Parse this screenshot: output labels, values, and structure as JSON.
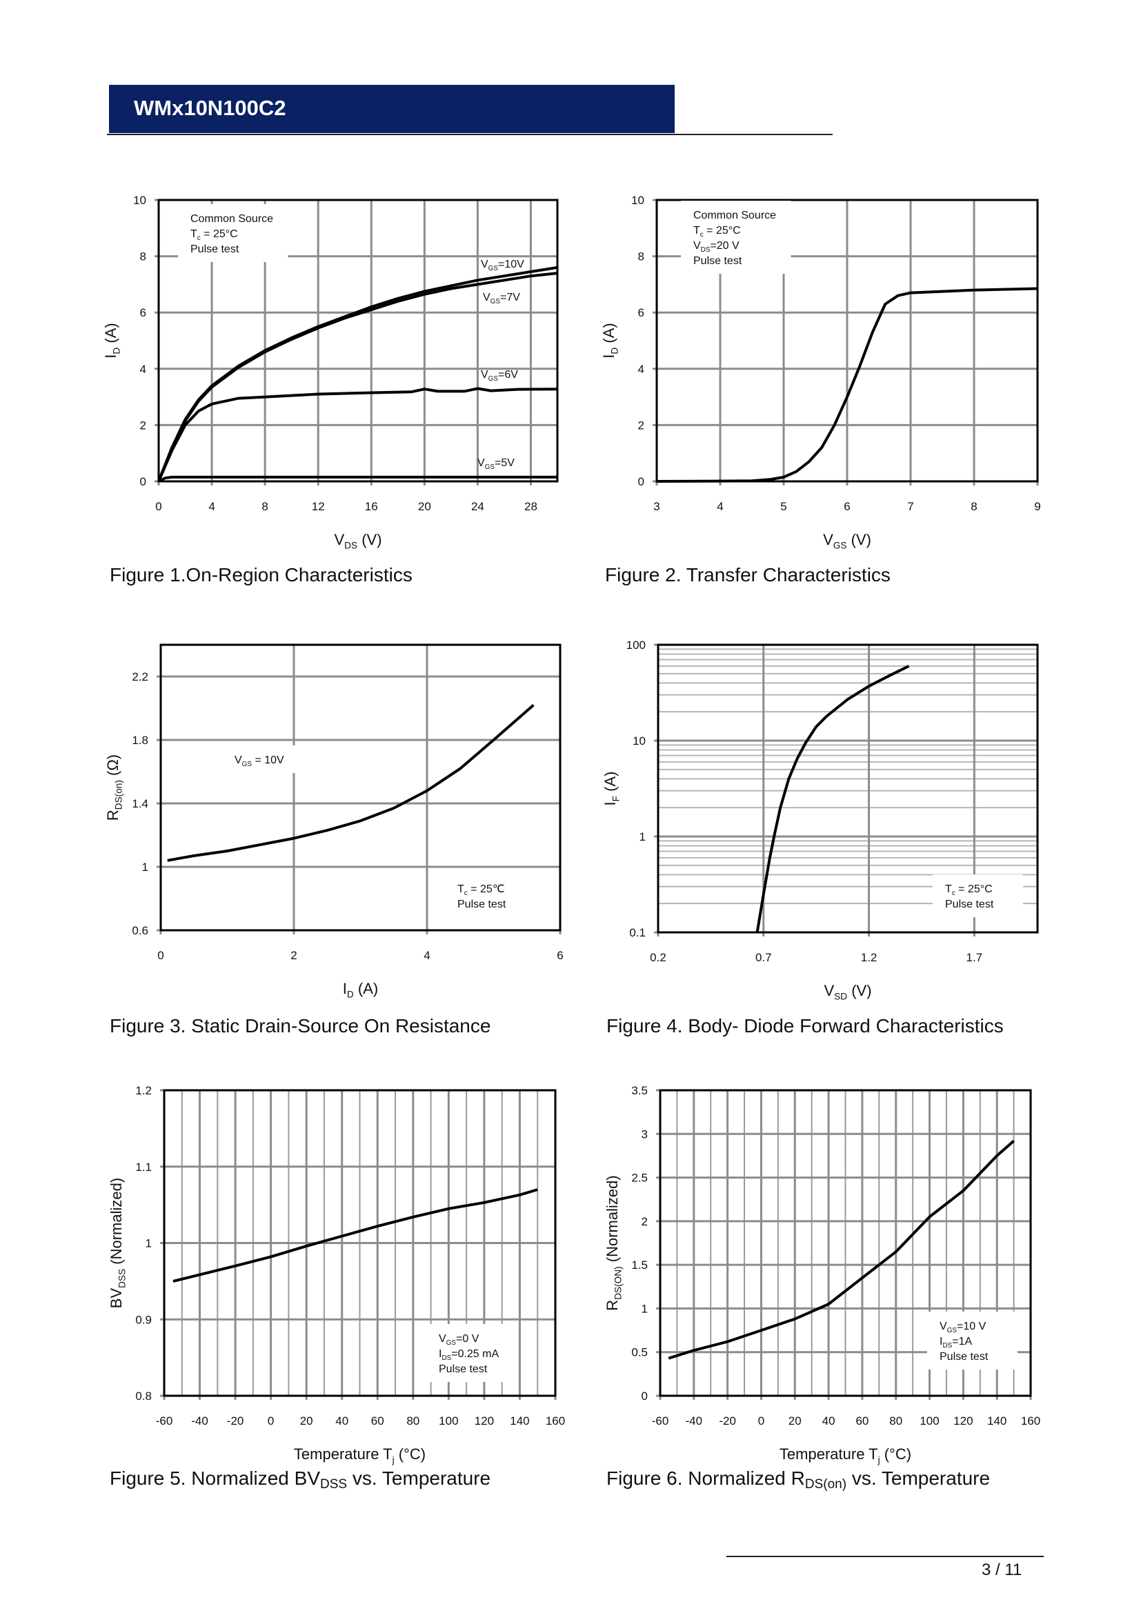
{
  "header": {
    "title": "WMx10N100C2",
    "color": "#0a2163"
  },
  "footer": {
    "page": "3 / 11"
  },
  "captions": [
    [
      {
        "t": "Figure 1.On-Region Characteristics"
      }
    ],
    [
      {
        "t": "Figure 2. Transfer Characteristics"
      }
    ],
    [
      {
        "t": "Figure 3. Static Drain-Source On Resistance"
      }
    ],
    [
      {
        "t": "Figure 4. Body- Diode Forward Characteristics"
      }
    ],
    [
      {
        "t": "Figure 5. Normalized BV"
      },
      {
        "t": "DSS",
        "sub": true
      },
      {
        "t": " vs. Temperature"
      }
    ],
    [
      {
        "t": "Figure 6. Normalized R"
      },
      {
        "t": "DS(on)",
        "sub": true
      },
      {
        "t": " vs. Temperature"
      }
    ]
  ],
  "chart_data": [
    {
      "type": "line",
      "xlim": [
        0,
        30
      ],
      "ylim": [
        0,
        10
      ],
      "xticks": [
        0,
        4,
        8,
        12,
        16,
        20,
        24,
        28
      ],
      "yticks": [
        0,
        2,
        4,
        6,
        8,
        10
      ],
      "grid": "major",
      "xlabel": [
        {
          "t": "V"
        },
        {
          "t": "DS",
          "sub": true
        },
        {
          "t": " (V)"
        }
      ],
      "ylabel": [
        {
          "t": "I"
        },
        {
          "t": "D",
          "sub": true
        },
        {
          "t": " (A)"
        }
      ],
      "annotations": [
        [
          [
            {
              "t": "Common Source"
            }
          ],
          [
            {
              "t": "T"
            },
            {
              "t": "c",
              "sub": true
            },
            {
              "t": " = 25°C"
            }
          ],
          [
            {
              "t": "Pulse test"
            }
          ]
        ]
      ],
      "series": [
        {
          "name": [
            {
              "t": "V"
            },
            {
              "t": "GS",
              "sub": true
            },
            {
              "t": "=10V"
            }
          ],
          "x": [
            0,
            1,
            2,
            3,
            4,
            6,
            8,
            10,
            12,
            14,
            16,
            18,
            20,
            22,
            24,
            26,
            28,
            30
          ],
          "y": [
            0,
            1.2,
            2.2,
            2.9,
            3.4,
            4.1,
            4.65,
            5.1,
            5.5,
            5.85,
            6.2,
            6.5,
            6.75,
            6.95,
            7.15,
            7.3,
            7.45,
            7.6
          ]
        },
        {
          "name": [
            {
              "t": "V"
            },
            {
              "t": "GS",
              "sub": true
            },
            {
              "t": "=7V"
            }
          ],
          "x": [
            0,
            1,
            2,
            3,
            4,
            6,
            8,
            10,
            12,
            14,
            16,
            18,
            20,
            22,
            24,
            26,
            28,
            30
          ],
          "y": [
            0,
            1.2,
            2.15,
            2.85,
            3.35,
            4.05,
            4.6,
            5.05,
            5.45,
            5.8,
            6.1,
            6.4,
            6.65,
            6.85,
            7.0,
            7.15,
            7.3,
            7.4
          ]
        },
        {
          "name": [
            {
              "t": "V"
            },
            {
              "t": "GS",
              "sub": true
            },
            {
              "t": "=6V"
            }
          ],
          "x": [
            0,
            1,
            2,
            3,
            4,
            6,
            8,
            12,
            16,
            19,
            20,
            21,
            23,
            24,
            25,
            27,
            30
          ],
          "y": [
            0,
            1.1,
            2.0,
            2.5,
            2.75,
            2.95,
            3.0,
            3.1,
            3.15,
            3.18,
            3.28,
            3.2,
            3.2,
            3.3,
            3.22,
            3.27,
            3.28
          ]
        },
        {
          "name": [
            {
              "t": "V"
            },
            {
              "t": "GS",
              "sub": true
            },
            {
              "t": "=5V"
            }
          ],
          "x": [
            0,
            0.5,
            1,
            30
          ],
          "y": [
            0,
            0.12,
            0.15,
            0.15
          ]
        }
      ]
    },
    {
      "type": "line",
      "xlim": [
        3,
        9
      ],
      "ylim": [
        0,
        10
      ],
      "xticks": [
        3,
        4,
        5,
        6,
        7,
        8,
        9
      ],
      "yticks": [
        0,
        2,
        4,
        6,
        8,
        10
      ],
      "grid": "major",
      "xlabel": [
        {
          "t": "V"
        },
        {
          "t": "GS",
          "sub": true
        },
        {
          "t": " (V)"
        }
      ],
      "ylabel": [
        {
          "t": "I"
        },
        {
          "t": "D",
          "sub": true
        },
        {
          "t": " (A)"
        }
      ],
      "annotations": [
        [
          [
            {
              "t": "Common Source"
            }
          ],
          [
            {
              "t": "T"
            },
            {
              "t": "c",
              "sub": true
            },
            {
              "t": " = 25°C"
            }
          ],
          [
            {
              "t": "V"
            },
            {
              "t": "DS",
              "sub": true
            },
            {
              "t": "=20 V"
            }
          ],
          [
            {
              "t": "Pulse test"
            }
          ]
        ]
      ],
      "series": [
        {
          "x": [
            3,
            4,
            4.5,
            4.8,
            5,
            5.2,
            5.4,
            5.6,
            5.8,
            6,
            6.2,
            6.4,
            6.6,
            6.8,
            7,
            7.5,
            8,
            9
          ],
          "y": [
            0,
            0.01,
            0.02,
            0.07,
            0.15,
            0.35,
            0.7,
            1.2,
            2.0,
            3.0,
            4.1,
            5.3,
            6.3,
            6.6,
            6.7,
            6.75,
            6.8,
            6.85
          ]
        }
      ]
    },
    {
      "type": "line",
      "xlim": [
        0,
        6
      ],
      "ylim": [
        0.6,
        2.4
      ],
      "xticks": [
        0,
        2,
        4,
        6
      ],
      "yticks": [
        0.6,
        1,
        1.4,
        1.8,
        2.2
      ],
      "grid": "major",
      "xlabel": [
        {
          "t": "I"
        },
        {
          "t": "D",
          "sub": true
        },
        {
          "t": " (A)"
        }
      ],
      "ylabel": [
        {
          "t": "R"
        },
        {
          "t": "DS(on)",
          "sub": true
        },
        {
          "t": " (Ω)"
        }
      ],
      "annotations": [
        [
          [
            {
              "t": "V"
            },
            {
              "t": "GS",
              "sub": true
            },
            {
              "t": " = 10V"
            }
          ]
        ],
        [
          [
            {
              "t": "T"
            },
            {
              "t": "c",
              "sub": true
            },
            {
              "t": " = 25℃"
            }
          ],
          [
            {
              "t": "Pulse test"
            }
          ]
        ]
      ],
      "series": [
        {
          "x": [
            0.1,
            0.5,
            1,
            1.5,
            2,
            2.5,
            3,
            3.5,
            4,
            4.5,
            5,
            5.6
          ],
          "y": [
            1.04,
            1.07,
            1.1,
            1.14,
            1.18,
            1.23,
            1.29,
            1.37,
            1.48,
            1.62,
            1.8,
            2.02
          ]
        }
      ]
    },
    {
      "type": "line",
      "yscale": "log",
      "xlim": [
        0.2,
        2.0
      ],
      "ylim": [
        0.1,
        100
      ],
      "xticks": [
        0.2,
        0.7,
        1.2,
        1.7
      ],
      "yticks": [
        0.1,
        1,
        10,
        100
      ],
      "grid": "major+minor",
      "xlabel": [
        {
          "t": "V"
        },
        {
          "t": "SD",
          "sub": true
        },
        {
          "t": " (V)"
        }
      ],
      "ylabel": [
        {
          "t": "I"
        },
        {
          "t": "F",
          "sub": true
        },
        {
          "t": " (A)"
        }
      ],
      "annotations": [
        [
          [
            {
              "t": "T"
            },
            {
              "t": "c",
              "sub": true
            },
            {
              "t": " = 25°C"
            }
          ],
          [
            {
              "t": "Pulse test"
            }
          ]
        ]
      ],
      "series": [
        {
          "x": [
            0.67,
            0.7,
            0.73,
            0.75,
            0.78,
            0.82,
            0.86,
            0.9,
            0.95,
            1.0,
            1.1,
            1.2,
            1.3,
            1.39
          ],
          "y": [
            0.1,
            0.25,
            0.6,
            1,
            2,
            4,
            6.5,
            9.5,
            14,
            18,
            27,
            37,
            48,
            60
          ]
        }
      ]
    },
    {
      "type": "line",
      "xlim": [
        -60,
        160
      ],
      "ylim": [
        0.8,
        1.2
      ],
      "xticks": [
        -60,
        -40,
        -20,
        0,
        20,
        40,
        60,
        80,
        100,
        120,
        140,
        160
      ],
      "yticks": [
        0.8,
        0.9,
        1,
        1.1,
        1.2
      ],
      "grid": "major+minor",
      "xlabel": [
        {
          "t": "Temperature T"
        },
        {
          "t": "j",
          "sub": true
        },
        {
          "t": " (°C)"
        }
      ],
      "ylabel": [
        {
          "t": "BV"
        },
        {
          "t": "DSS",
          "sub": true
        },
        {
          "t": " (Normalized)"
        }
      ],
      "annotations": [
        [
          [
            {
              "t": "V"
            },
            {
              "t": "GS",
              "sub": true
            },
            {
              "t": "=0 V"
            }
          ],
          [
            {
              "t": "I"
            },
            {
              "t": "DS",
              "sub": true
            },
            {
              "t": "=0.25 mA"
            }
          ],
          [
            {
              "t": "Pulse test"
            }
          ]
        ]
      ],
      "series": [
        {
          "x": [
            -55,
            -20,
            0,
            20,
            40,
            60,
            80,
            100,
            120,
            140,
            150
          ],
          "y": [
            0.95,
            0.97,
            0.982,
            0.996,
            1.009,
            1.022,
            1.034,
            1.045,
            1.053,
            1.063,
            1.07
          ]
        }
      ]
    },
    {
      "type": "line",
      "xlim": [
        -60,
        160
      ],
      "ylim": [
        0,
        3.5
      ],
      "xticks": [
        -60,
        -40,
        -20,
        0,
        20,
        40,
        60,
        80,
        100,
        120,
        140,
        160
      ],
      "yticks": [
        0,
        0.5,
        1,
        1.5,
        2,
        2.5,
        3,
        3.5
      ],
      "grid": "major+minor",
      "xlabel": [
        {
          "t": "Temperature T"
        },
        {
          "t": "j",
          "sub": true
        },
        {
          "t": " (°C)"
        }
      ],
      "ylabel": [
        {
          "t": "R"
        },
        {
          "t": "DS(ON)",
          "sub": true
        },
        {
          "t": " (Normalized)"
        }
      ],
      "annotations": [
        [
          [
            {
              "t": "V"
            },
            {
              "t": "GS",
              "sub": true
            },
            {
              "t": "=10 V"
            }
          ],
          [
            {
              "t": "I"
            },
            {
              "t": "DS",
              "sub": true
            },
            {
              "t": "=1A"
            }
          ],
          [
            {
              "t": "Pulse test"
            }
          ]
        ]
      ],
      "series": [
        {
          "x": [
            -55,
            -40,
            -20,
            0,
            20,
            40,
            60,
            80,
            100,
            120,
            140,
            150
          ],
          "y": [
            0.43,
            0.52,
            0.62,
            0.75,
            0.88,
            1.05,
            1.35,
            1.65,
            2.05,
            2.35,
            2.75,
            2.92
          ]
        }
      ]
    }
  ]
}
